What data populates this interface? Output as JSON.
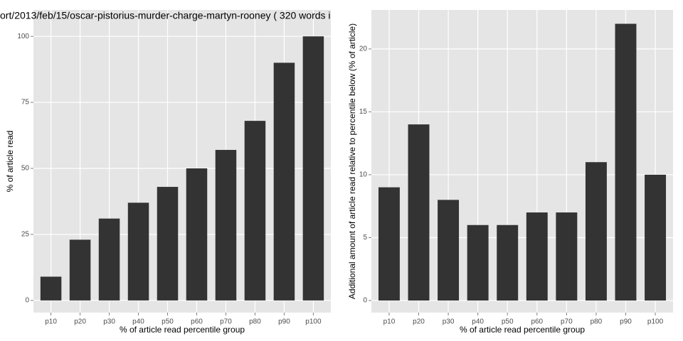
{
  "chart_data": [
    {
      "type": "bar",
      "title": "ort/2013/feb/15/oscar-pistorius-murder-charge-martyn-rooney ( 320 words i",
      "x_label": "% of article read percentile group",
      "y_label": "% of article read",
      "categories": [
        "p10",
        "p20",
        "p30",
        "p40",
        "p50",
        "p60",
        "p70",
        "p80",
        "p90",
        "p100"
      ],
      "values": [
        9,
        23,
        31,
        37,
        43,
        50,
        57,
        68,
        90,
        100
      ],
      "color": "#333333",
      "ylim": [
        -4.6,
        110
      ],
      "yticks": [
        0,
        25,
        50,
        75,
        100
      ],
      "grid": true
    },
    {
      "type": "bar",
      "x_label": "% of article read percentile group",
      "y_label": "Additional amount of article read relative to percentile below (% of article)",
      "categories": [
        "p10",
        "p20",
        "p30",
        "p40",
        "p50",
        "p60",
        "p70",
        "p80",
        "p90",
        "p100"
      ],
      "values": [
        9,
        14,
        8,
        6,
        6,
        7,
        7,
        11,
        22,
        10
      ],
      "color": "#333333",
      "ylim": [
        -0.96,
        23.1
      ],
      "yticks": [
        0,
        5,
        10,
        15,
        20
      ],
      "grid": true
    }
  ]
}
